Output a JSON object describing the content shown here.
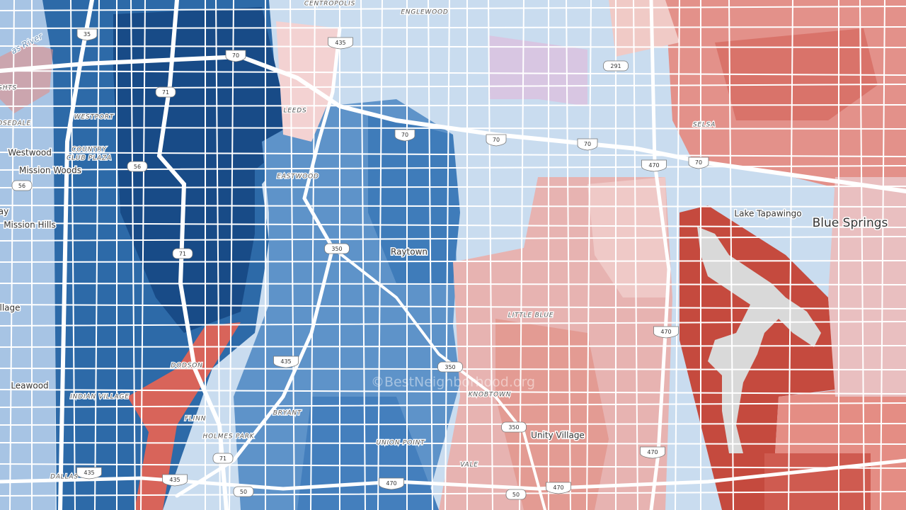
{
  "places": [
    {
      "label": "CENTROPOLIS"
    },
    {
      "label": "ENGLEWOOD"
    },
    {
      "label": "Westwood"
    },
    {
      "label": "Mission Woods"
    },
    {
      "label": "Mission Hills"
    },
    {
      "label": "WESTPORT"
    },
    {
      "label": "COUNTRY"
    },
    {
      "label": "CLUB PLAZA"
    },
    {
      "label": "LEEDS"
    },
    {
      "label": "EASTWOOD"
    },
    {
      "label": "Raytown"
    },
    {
      "label": "SELSA"
    },
    {
      "label": "Lake Tapawingo"
    },
    {
      "label": "Blue Springs"
    },
    {
      "label": "LITTLE BLUE"
    },
    {
      "label": "DODSON"
    },
    {
      "label": "INDIAN VILLAGE"
    },
    {
      "label": "FLINN"
    },
    {
      "label": "HOLMES PARK"
    },
    {
      "label": "BRYANT"
    },
    {
      "label": "KNOBTOWN"
    },
    {
      "label": "UNION POINT"
    },
    {
      "label": "VALE"
    },
    {
      "label": "Unity Village"
    },
    {
      "label": "DALLAS"
    },
    {
      "label": "Leawood"
    },
    {
      "label": "llage"
    },
    {
      "label": "ay"
    },
    {
      "label": "OSEDALE"
    },
    {
      "label": "GHTS"
    },
    {
      "label": "as River"
    }
  ],
  "shields": [
    {
      "label": "35"
    },
    {
      "label": "435"
    },
    {
      "label": "70"
    },
    {
      "label": "291"
    },
    {
      "label": "71"
    },
    {
      "label": "56"
    },
    {
      "label": "70"
    },
    {
      "label": "70"
    },
    {
      "label": "70"
    },
    {
      "label": "470"
    },
    {
      "label": "70"
    },
    {
      "label": "350"
    },
    {
      "label": "71"
    },
    {
      "label": "470"
    },
    {
      "label": "350"
    },
    {
      "label": "435"
    },
    {
      "label": "71"
    },
    {
      "label": "350"
    },
    {
      "label": "470"
    },
    {
      "label": "435"
    },
    {
      "label": "435"
    },
    {
      "label": "50"
    },
    {
      "label": "470"
    },
    {
      "label": "50"
    },
    {
      "label": "470"
    },
    {
      "label": "56"
    }
  ],
  "watermark": "©BestNeighborhood.org"
}
